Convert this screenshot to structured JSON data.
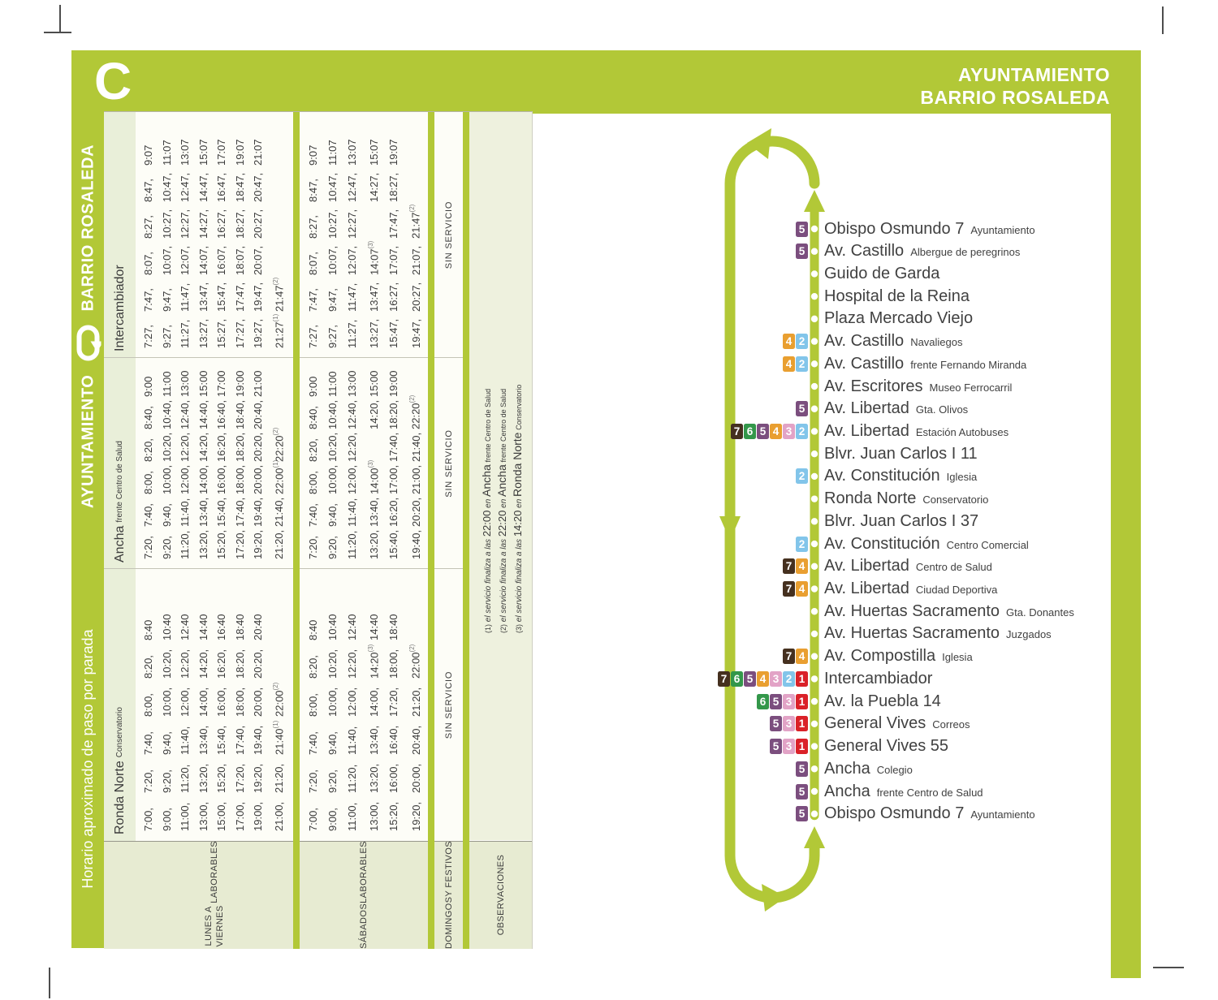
{
  "header": {
    "line": "C",
    "destination": [
      "AYUNTAMIENTO",
      "BARRIO ROSALEDA"
    ]
  },
  "sidebar": {
    "route_from": "AYUNTAMIENTO",
    "route_to": "BARRIO ROSALEDA",
    "note": "Horario aproximado de paso por parada"
  },
  "colors": {
    "green": "#b2c837",
    "line_colors": {
      "1": "#da2128",
      "2": "#82c5ea",
      "3": "#e2a3c6",
      "4": "#e99f30",
      "5": "#7b4e7e",
      "6": "#33974a",
      "7": "#45301f"
    }
  },
  "timetable": {
    "stops": [
      {
        "name": "Ronda Norte",
        "sub": "Conservatorio"
      },
      {
        "name": "Ancha",
        "sub": "frente Centro de Salud"
      },
      {
        "name": "Intercambiador",
        "sub": ""
      }
    ],
    "day_groups": [
      {
        "label": [
          "LUNES A VIERNES",
          "LABORABLES"
        ],
        "type": "times",
        "cells": [
          [
            [
              "7:00,",
              "7:20,",
              "7:40,",
              "8:00,",
              "8:20,",
              "8:40"
            ],
            [
              "9:00,",
              "9:20,",
              "9:40,",
              "10:00,",
              "10:20,",
              "10:40"
            ],
            [
              "11:00,",
              "11:20,",
              "11:40,",
              "12:00,",
              "12:20,",
              "12:40"
            ],
            [
              "13:00,",
              "13:20,",
              "13:40,",
              "14:00,",
              "14:20,",
              "14:40"
            ],
            [
              "15:00,",
              "15:20,",
              "15:40,",
              "16:00,",
              "16:20,",
              "16:40"
            ],
            [
              "17:00,",
              "17:20,",
              "17:40,",
              "18:00,",
              "18:20,",
              "18:40"
            ],
            [
              "19:00,",
              "19:20,",
              "19:40,",
              "20:00,",
              "20:20,",
              "20:40"
            ],
            [
              "21:00,",
              "21:20,",
              "21:40^(1)",
              "22:00^(2)"
            ]
          ],
          [
            [
              "7:20,",
              "7:40,",
              "8:00,",
              "8:20,",
              "8:40,",
              "9:00"
            ],
            [
              "9:20,",
              "9:40,",
              "10:00,",
              "10:20,",
              "10:40,",
              "11:00"
            ],
            [
              "11:20,",
              "11:40,",
              "12:00,",
              "12:20,",
              "12:40,",
              "13:00"
            ],
            [
              "13:20,",
              "13:40,",
              "14:00,",
              "14:20,",
              "14:40,",
              "15:00"
            ],
            [
              "15:20,",
              "15:40,",
              "16:00,",
              "16:20,",
              "16:40,",
              "17:00"
            ],
            [
              "17:20,",
              "17:40,",
              "18:00,",
              "18:20,",
              "18:40,",
              "19:00"
            ],
            [
              "19:20,",
              "19:40,",
              "20:00,",
              "20:20,",
              "20:40,",
              "21:00"
            ],
            [
              "21:20,",
              "21:40,",
              "22:00^(1)",
              "22:20^(2)"
            ]
          ],
          [
            [
              "7:27,",
              "7:47,",
              "8:07,",
              "8:27,",
              "8:47,",
              "9:07"
            ],
            [
              "9:27,",
              "9:47,",
              "10:07,",
              "10:27,",
              "10:47,",
              "11:07"
            ],
            [
              "11:27,",
              "11:47,",
              "12:07,",
              "12:27,",
              "12:47,",
              "13:07"
            ],
            [
              "13:27,",
              "13:47,",
              "14:07,",
              "14:27,",
              "14:47,",
              "15:07"
            ],
            [
              "15:27,",
              "15:47,",
              "16:07,",
              "16:27,",
              "16:47,",
              "17:07"
            ],
            [
              "17:27,",
              "17:47,",
              "18:07,",
              "18:27,",
              "18:47,",
              "19:07"
            ],
            [
              "19:27,",
              "19:47,",
              "20:07,",
              "20:27,",
              "20:47,",
              "21:07"
            ],
            [
              "21:27^(1)",
              "21:47^(2)"
            ]
          ]
        ]
      },
      {
        "label": [
          "SÁBADOS",
          "LABORABLES"
        ],
        "type": "times",
        "cells": [
          [
            [
              "7:00,",
              "7:20,",
              "7:40,",
              "8:00,",
              "8:20,",
              "8:40"
            ],
            [
              "9:00,",
              "9:20,",
              "9:40,",
              "10:00,",
              "10:20,",
              "10:40"
            ],
            [
              "11:00,",
              "11:20,",
              "11:40,",
              "12:00,",
              "12:20,",
              "12:40"
            ],
            [
              "13:00,",
              "13:20,",
              "13:40,",
              "14:00,",
              "14:20^(3)",
              "14:40"
            ],
            [
              "15:20,",
              "16:00,",
              "16:40,",
              "17:20,",
              "18:00,",
              "18:40"
            ],
            [
              "19:20,",
              "20:00,",
              "20:40,",
              "21:20,",
              "22:00^(2)"
            ]
          ],
          [
            [
              "7:20,",
              "7:40,",
              "8:00,",
              "8:20,",
              "8:40,",
              "9:00"
            ],
            [
              "9:20,",
              "9:40,",
              "10:00,",
              "10:20,",
              "10:40,",
              "11:00"
            ],
            [
              "11:20,",
              "11:40,",
              "12:00,",
              "12:20,",
              "12:40,",
              "13:00"
            ],
            [
              "13:20,",
              "13:40,",
              "14:00^(3)",
              "",
              "14:20,",
              "15:00"
            ],
            [
              "15:40,",
              "16:20,",
              "17:00,",
              "17:40,",
              "18:20,",
              "19:00"
            ],
            [
              "19:40,",
              "20:20,",
              "21:00,",
              "21:40,",
              "22:20^(2)"
            ]
          ],
          [
            [
              "7:27,",
              "7:47,",
              "8:07,",
              "8:27,",
              "8:47,",
              "9:07"
            ],
            [
              "9:27,",
              "9:47,",
              "10:07,",
              "10:27,",
              "10:47,",
              "11:07"
            ],
            [
              "11:27,",
              "11:47,",
              "12:07,",
              "12:27,",
              "12:47,",
              "13:07"
            ],
            [
              "13:27,",
              "13:47,",
              "14:07^(3)",
              "",
              "14:27,",
              "15:07"
            ],
            [
              "15:47,",
              "16:27,",
              "17:07,",
              "17:47,",
              "18:27,",
              "19:07"
            ],
            [
              "19:47,",
              "20:27,",
              "21:07,",
              "21:47^(2)"
            ]
          ]
        ]
      },
      {
        "label": [
          "DOMINGOS",
          "Y FESTIVOS"
        ],
        "type": "text",
        "value": "SIN SERVICIO"
      },
      {
        "label": [
          "OBSERVACIONES"
        ],
        "type": "footnotes"
      }
    ],
    "footnotes": [
      {
        "mark": "(1)",
        "pre": "el servicio finaliza a las",
        "time": "22:00",
        "conj": "en",
        "stop": "Ancha",
        "stop_sub": "frente Centro de Salud"
      },
      {
        "mark": "(2)",
        "pre": "el servicio finaliza a las",
        "time": "22:20",
        "conj": "en",
        "stop": "Ancha",
        "stop_sub": "frente Centro de Salud"
      },
      {
        "mark": "(3)",
        "pre": "el servicio finaliza a las",
        "time": "14:20",
        "conj": "en",
        "stop": "Ronda Norte",
        "stop_sub": "Conservatorio"
      }
    ]
  },
  "route": {
    "stops": [
      {
        "lines": [
          "5"
        ],
        "name": "Obispo Osmundo 7",
        "sub": "Ayuntamiento"
      },
      {
        "lines": [
          "5"
        ],
        "name": "Av. Castillo",
        "sub": "Albergue de peregrinos"
      },
      {
        "lines": [],
        "name": "Guido de Garda",
        "sub": ""
      },
      {
        "lines": [],
        "name": "Hospital de la Reina",
        "sub": ""
      },
      {
        "lines": [],
        "name": "Plaza Mercado Viejo",
        "sub": ""
      },
      {
        "lines": [
          "4",
          "2"
        ],
        "name": "Av. Castillo",
        "sub": "Navaliegos"
      },
      {
        "lines": [
          "4",
          "2"
        ],
        "name": "Av. Castillo",
        "sub": "frente Fernando Miranda"
      },
      {
        "lines": [],
        "name": "Av. Escritores",
        "sub": "Museo Ferrocarril"
      },
      {
        "lines": [
          "5"
        ],
        "name": "Av. Libertad",
        "sub": "Gta. Olivos"
      },
      {
        "lines": [
          "7",
          "6",
          "5",
          "4",
          "3",
          "2"
        ],
        "name": "Av. Libertad",
        "sub": "Estación Autobuses"
      },
      {
        "lines": [],
        "name": "Blvr. Juan Carlos I 11",
        "sub": ""
      },
      {
        "lines": [
          "2"
        ],
        "name": "Av. Constitución",
        "sub": "Iglesia"
      },
      {
        "lines": [],
        "name": "Ronda Norte",
        "sub": "Conservatorio"
      },
      {
        "lines": [],
        "name": "Blvr. Juan Carlos I 37",
        "sub": ""
      },
      {
        "lines": [
          "2"
        ],
        "name": "Av. Constitución",
        "sub": "Centro Comercial"
      },
      {
        "lines": [
          "7",
          "4"
        ],
        "name": "Av. Libertad",
        "sub": "Centro de Salud"
      },
      {
        "lines": [
          "7",
          "4"
        ],
        "name": "Av. Libertad",
        "sub": "Ciudad Deportiva"
      },
      {
        "lines": [],
        "name": "Av. Huertas Sacramento",
        "sub": "Gta. Donantes"
      },
      {
        "lines": [],
        "name": "Av. Huertas Sacramento",
        "sub": "Juzgados"
      },
      {
        "lines": [
          "7",
          "4"
        ],
        "name": "Av. Compostilla",
        "sub": "Iglesia"
      },
      {
        "lines": [
          "7",
          "6",
          "5",
          "4",
          "3",
          "2",
          "1"
        ],
        "name": "Intercambiador",
        "sub": ""
      },
      {
        "lines": [
          "6",
          "5",
          "3",
          "1"
        ],
        "name": "Av. la Puebla 14",
        "sub": ""
      },
      {
        "lines": [
          "5",
          "3",
          "1"
        ],
        "name": "General Vives",
        "sub": "Correos"
      },
      {
        "lines": [
          "5",
          "3",
          "1"
        ],
        "name": "General Vives 55",
        "sub": ""
      },
      {
        "lines": [
          "5"
        ],
        "name": "Ancha",
        "sub": "Colegio"
      },
      {
        "lines": [
          "5"
        ],
        "name": "Ancha",
        "sub": "frente Centro de Salud"
      },
      {
        "lines": [
          "5"
        ],
        "name": "Obispo Osmundo 7",
        "sub": "Ayuntamiento"
      }
    ]
  }
}
